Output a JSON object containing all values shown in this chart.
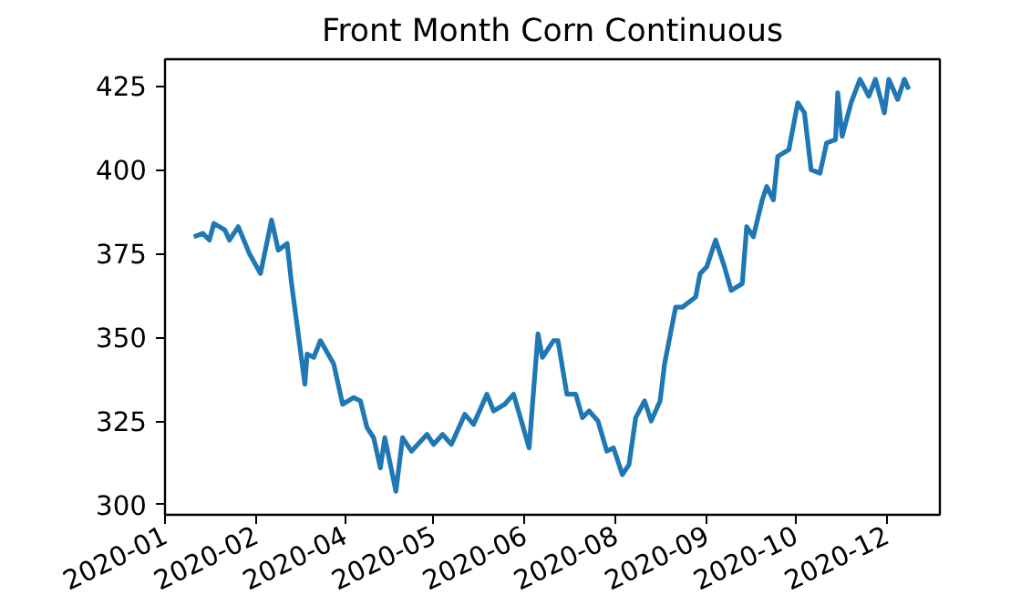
{
  "chart_data": {
    "type": "line",
    "title": "Front Month Corn Continuous",
    "x": [
      "2020-01-28",
      "2020-02-01",
      "2020-02-04",
      "2020-02-06",
      "2020-02-11",
      "2020-02-13",
      "2020-02-17",
      "2020-02-22",
      "2020-02-27",
      "2020-03-03",
      "2020-03-06",
      "2020-03-10",
      "2020-03-12",
      "2020-03-18",
      "2020-03-19",
      "2020-03-22",
      "2020-03-25",
      "2020-03-31",
      "2020-04-04",
      "2020-04-09",
      "2020-04-12",
      "2020-04-15",
      "2020-04-18",
      "2020-04-21",
      "2020-04-23",
      "2020-04-28",
      "2020-05-01",
      "2020-05-05",
      "2020-05-12",
      "2020-05-15",
      "2020-05-19",
      "2020-05-23",
      "2020-05-29",
      "2020-06-02",
      "2020-06-08",
      "2020-06-11",
      "2020-06-16",
      "2020-06-20",
      "2020-06-27",
      "2020-07-01",
      "2020-07-03",
      "2020-07-08",
      "2020-07-10",
      "2020-07-14",
      "2020-07-18",
      "2020-07-21",
      "2020-07-24",
      "2020-07-28",
      "2020-08-01",
      "2020-08-04",
      "2020-08-08",
      "2020-08-11",
      "2020-08-14",
      "2020-08-18",
      "2020-08-21",
      "2020-08-25",
      "2020-08-27",
      "2020-09-01",
      "2020-09-04",
      "2020-09-10",
      "2020-09-12",
      "2020-09-15",
      "2020-09-19",
      "2020-09-23",
      "2020-09-26",
      "2020-10-01",
      "2020-10-03",
      "2020-10-06",
      "2020-10-10",
      "2020-10-12",
      "2020-10-15",
      "2020-10-17",
      "2020-10-22",
      "2020-10-26",
      "2020-10-29",
      "2020-11-01",
      "2020-11-05",
      "2020-11-08",
      "2020-11-12",
      "2020-11-13",
      "2020-11-15",
      "2020-11-19",
      "2020-11-23",
      "2020-11-27",
      "2020-11-30",
      "2020-12-04",
      "2020-12-06",
      "2020-12-10",
      "2020-12-13",
      "2020-12-15"
    ],
    "series": [
      {
        "color": "#1f77b4",
        "values": [
          380,
          381,
          379,
          384,
          382,
          379,
          383,
          375,
          369,
          385,
          376,
          378,
          366,
          336,
          345,
          344,
          349,
          342,
          330,
          332,
          331,
          323,
          320,
          311,
          320,
          304,
          320,
          316,
          321,
          318,
          321,
          318,
          327,
          324,
          333,
          328,
          330,
          333,
          317,
          351,
          344,
          349,
          349,
          333,
          333,
          326,
          328,
          325,
          316,
          317,
          309,
          312,
          326,
          331,
          325,
          331,
          342,
          359,
          359,
          362,
          369,
          371,
          379,
          371,
          364,
          366,
          383,
          380,
          391,
          395,
          391,
          404,
          406,
          420,
          417,
          400,
          399,
          408,
          409,
          423,
          410,
          420,
          427,
          422,
          427,
          417,
          427,
          421,
          427,
          424
        ]
      }
    ],
    "xlim": [
      "2020-01-15",
      "2020-12-29"
    ],
    "ylim": [
      297,
      433
    ],
    "xticks": [
      {
        "value": "2020-01-15",
        "label": "2020-01"
      },
      {
        "value": "2020-02-25",
        "label": "2020-02"
      },
      {
        "value": "2020-04-05",
        "label": "2020-04"
      },
      {
        "value": "2020-05-15",
        "label": "2020-05"
      },
      {
        "value": "2020-06-25",
        "label": "2020-06"
      },
      {
        "value": "2020-08-05",
        "label": "2020-08"
      },
      {
        "value": "2020-09-15",
        "label": "2020-09"
      },
      {
        "value": "2020-10-25",
        "label": "2020-10"
      },
      {
        "value": "2020-12-05",
        "label": "2020-12"
      }
    ],
    "yticks": [
      300,
      325,
      350,
      375,
      400,
      425
    ]
  }
}
